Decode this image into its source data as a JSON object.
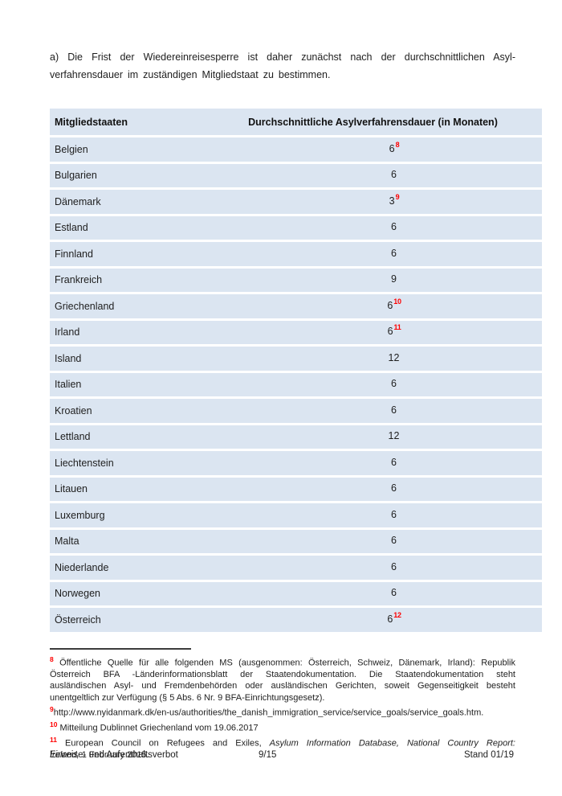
{
  "intro": {
    "line1": "a) Die Frist der Wiedereinreisesperre ist daher zunächst nach der durchschnittlichen Asyl-",
    "line2": "verfahrensdauer im zuständigen Mitgliedstaat zu bestimmen."
  },
  "table": {
    "headers": {
      "state": "Mitgliedstaaten",
      "duration": "Durchschnittliche Asylverfahrensdauer (in Monaten)"
    },
    "row_background": "#dbe5f1",
    "footnote_ref_color": "#fe0000",
    "rows": [
      {
        "state": "Belgien",
        "value": "6",
        "sup": "8"
      },
      {
        "state": "Bulgarien",
        "value": "6"
      },
      {
        "state": "Dänemark",
        "value": "3",
        "sup": "9"
      },
      {
        "state": "Estland",
        "value": "6"
      },
      {
        "state": "Finnland",
        "value": "6"
      },
      {
        "state": "Frankreich",
        "value": "9"
      },
      {
        "state": "Griechenland",
        "value": "6",
        "sup": "10"
      },
      {
        "state": "Irland",
        "value": "6",
        "sup": "11"
      },
      {
        "state": "Island",
        "value": "12"
      },
      {
        "state": "Italien",
        "value": "6"
      },
      {
        "state": "Kroatien",
        "value": "6"
      },
      {
        "state": "Lettland",
        "value": "12"
      },
      {
        "state": "Liechtenstein",
        "value": "6"
      },
      {
        "state": "Litauen",
        "value": "6"
      },
      {
        "state": "Luxemburg",
        "value": "6"
      },
      {
        "state": "Malta",
        "value": "6"
      },
      {
        "state": "Niederlande",
        "value": "6"
      },
      {
        "state": "Norwegen",
        "value": "6"
      },
      {
        "state": "Österreich",
        "value": "6",
        "sup": "12"
      }
    ]
  },
  "footnotes": {
    "fn8": {
      "marker": "8",
      "lines": [
        "Öffentliche Quelle für alle folgenden MS (ausgenommen: Österreich, Schweiz, Dänemark, Irland): Republik",
        "Österreich BFA -Länderinformationsblatt der Staatendokumentation. Die Staatendokumentation steht",
        "ausländischen Asyl- und Fremdenbehörden oder ausländischen Gerichten, soweit Gegenseitigkeit besteht",
        "unentgeltlich zur Verfügung (§ 5 Abs. 6 Nr. 9 BFA-Einrichtungsgesetz)."
      ]
    },
    "fn9": {
      "marker": "9",
      "text": "http://www.nyidanmark.dk/en-us/authorities/the_danish_immigration_service/service_goals/service_goals.htm."
    },
    "fn10": {
      "marker": "10",
      "text": "Mitteilung Dublinnet Griechenland vom 19.06.2017"
    },
    "fn11": {
      "marker": "11",
      "line1_pre": "European Council on Refugees and Exiles, ",
      "line1_italic": "Asylum Information Database, National Country Report:",
      "line2_italic": "Ireland,",
      "line2_post": " 1 February 2015."
    }
  },
  "footer": {
    "left": "Einreise- und Aufenthaltsverbot",
    "center": "9/15",
    "right": "Stand 01/19"
  }
}
